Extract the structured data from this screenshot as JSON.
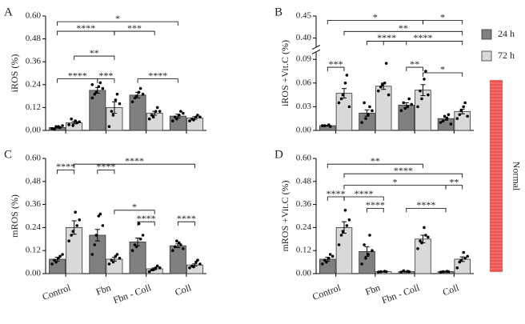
{
  "chart_data": [
    {
      "type": "bar",
      "panel_label": "A",
      "ylabel": "iROS (%)",
      "categories": [
        null,
        null,
        null,
        null
      ],
      "ylim": [
        0,
        0.6
      ],
      "yticks": [
        {
          "value": 0,
          "label": "0.00"
        },
        {
          "value": 0.12,
          "label": "0.12"
        },
        {
          "value": 0.24,
          "label": "0.24"
        },
        {
          "value": 0.36,
          "label": "0.36"
        },
        {
          "value": 0.48,
          "label": "0.48"
        },
        {
          "value": 0.6,
          "label": "0.60"
        }
      ],
      "series": [
        {
          "color": "#808080",
          "values": [
            0.015,
            0.21,
            0.185,
            0.075
          ],
          "errors": [
            0.003,
            0.015,
            0.015,
            0.01
          ],
          "points": [
            [
              0.01,
              0.02,
              0.015,
              0.005,
              0.02,
              0.025
            ],
            [
              0.17,
              0.23,
              0.25,
              0.19,
              0.2,
              0.22,
              0.24
            ],
            [
              0.15,
              0.2,
              0.22,
              0.17,
              0.18,
              0.19
            ],
            [
              0.05,
              0.08,
              0.1,
              0.07,
              0.06,
              0.09
            ]
          ]
        },
        {
          "color": "#d9d9d9",
          "values": [
            0.04,
            0.12,
            0.09,
            0.065
          ],
          "errors": [
            0.006,
            0.03,
            0.01,
            0.007
          ],
          "points": [
            [
              0.03,
              0.05,
              0.04,
              0.06,
              0.025,
              0.045
            ],
            [
              0.02,
              0.16,
              0.19,
              0.1,
              0.08,
              0.14
            ],
            [
              0.06,
              0.1,
              0.12,
              0.08,
              0.07,
              0.1
            ],
            [
              0.05,
              0.07,
              0.08,
              0.06,
              0.055,
              0.07
            ]
          ]
        }
      ],
      "brackets": [
        {
          "label": "*",
          "from": 0,
          "to": 6,
          "y": 0.57
        },
        {
          "label": "****",
          "from": 0,
          "to": 3,
          "y": 0.52
        },
        {
          "label": "***",
          "from": 3,
          "to": 5,
          "y": 0.52
        },
        {
          "label": "**",
          "from": 1,
          "to": 3,
          "y": 0.39
        },
        {
          "label": "****",
          "from": 0,
          "to": 2,
          "y": 0.27
        },
        {
          "label": "***",
          "from": 2,
          "to": 3,
          "y": 0.27
        },
        {
          "label": "****",
          "from": 4,
          "to": 6,
          "y": 0.27
        }
      ]
    },
    {
      "type": "bar",
      "panel_label": "B",
      "ylabel": "iROS +Vit.C (%)",
      "categories": [
        null,
        null,
        null,
        null
      ],
      "ylim": [
        0,
        0.1
      ],
      "yticks": [
        {
          "value": 0,
          "label": "0.00"
        },
        {
          "value": 0.03,
          "label": "0.03"
        },
        {
          "value": 0.06,
          "label": "0.06"
        },
        {
          "value": 0.09,
          "label": "0.09"
        }
      ],
      "upper_ylim": [
        0.38,
        0.45
      ],
      "upper_yticks": [
        {
          "value": 0.4,
          "label": "0.40"
        },
        {
          "value": 0.45,
          "label": "0.45"
        }
      ],
      "series": [
        {
          "name": "24 h",
          "color": "#808080",
          "values": [
            0.006,
            0.022,
            0.032,
            0.015
          ],
          "errors": [
            0.0005,
            0.004,
            0.003,
            0.002
          ],
          "points": [
            [
              0.006,
              0.007,
              0.005,
              0.006
            ],
            [
              0.01,
              0.02,
              0.03,
              0.035,
              0.015,
              0.025
            ],
            [
              0.025,
              0.03,
              0.04,
              0.035,
              0.028,
              0.033
            ],
            [
              0.01,
              0.015,
              0.02,
              0.012,
              0.018,
              0.008
            ]
          ]
        },
        {
          "name": "72 h",
          "color": "#d9d9d9",
          "values": [
            0.047,
            0.056,
            0.051,
            0.024
          ],
          "errors": [
            0.006,
            0.004,
            0.007,
            0.003
          ],
          "points": [
            [
              0.035,
              0.06,
              0.07,
              0.04,
              0.045,
              0.03
            ],
            [
              0.05,
              0.06,
              0.085,
              0.055,
              0.058,
              0.045
            ],
            [
              0.03,
              0.065,
              0.075,
              0.05,
              0.04,
              0.045
            ],
            [
              0.015,
              0.03,
              0.035,
              0.02,
              0.025,
              0.018
            ]
          ]
        }
      ],
      "brackets": [
        {
          "label": "***",
          "from": 0,
          "to": 1,
          "y": 0.08
        },
        {
          "label": "*",
          "from": 0,
          "to": 5,
          "y": 0.44
        },
        {
          "label": "*",
          "from": 5,
          "to": 7,
          "y": 0.44
        },
        {
          "label": "**",
          "from": 1,
          "to": 7,
          "y": 0.415
        },
        {
          "label": "****",
          "from": 2,
          "to": 4,
          "y": 0.393
        },
        {
          "label": "****",
          "from": 3,
          "to": 7,
          "y": 0.393
        },
        {
          "label": "**",
          "from": 4,
          "to": 5,
          "y": 0.08
        },
        {
          "label": "*",
          "from": 5,
          "to": 7,
          "y": 0.073
        }
      ]
    },
    {
      "type": "bar",
      "panel_label": "C",
      "ylabel": "mROS (%)",
      "categories": [
        "Control",
        "Fbn",
        "Fbn - Coll",
        "Coll"
      ],
      "ylim": [
        0,
        0.6
      ],
      "yticks": [
        {
          "value": 0,
          "label": "0.00"
        },
        {
          "value": 0.12,
          "label": "0.12"
        },
        {
          "value": 0.24,
          "label": "0.24"
        },
        {
          "value": 0.36,
          "label": "0.36"
        },
        {
          "value": 0.48,
          "label": "0.48"
        },
        {
          "value": 0.6,
          "label": "0.60"
        }
      ],
      "series": [
        {
          "color": "#808080",
          "values": [
            0.075,
            0.2,
            0.165,
            0.145
          ],
          "errors": [
            0.01,
            0.03,
            0.02,
            0.01
          ],
          "points": [
            [
              0.05,
              0.08,
              0.09,
              0.07,
              0.06,
              0.1
            ],
            [
              0.1,
              0.3,
              0.31,
              0.15,
              0.2,
              0.25
            ],
            [
              0.12,
              0.26,
              0.18,
              0.15,
              0.14,
              0.2
            ],
            [
              0.12,
              0.16,
              0.15,
              0.14,
              0.17,
              0.13
            ]
          ]
        },
        {
          "color": "#d9d9d9",
          "values": [
            0.24,
            0.075,
            0.025,
            0.045
          ],
          "errors": [
            0.035,
            0.01,
            0.005,
            0.006
          ],
          "points": [
            [
              0.17,
              0.32,
              0.25,
              0.2,
              0.22,
              0.28
            ],
            [
              0.05,
              0.09,
              0.1,
              0.07,
              0.06,
              0.08
            ],
            [
              0.01,
              0.03,
              0.04,
              0.02,
              0.02,
              0.03
            ],
            [
              0.03,
              0.06,
              0.07,
              0.04,
              0.035,
              0.05
            ]
          ]
        }
      ],
      "brackets": [
        {
          "label": "****",
          "from": 1,
          "to": 7,
          "y": 0.57
        },
        {
          "label": "****",
          "from": 0,
          "to": 1,
          "y": 0.54
        },
        {
          "label": "****",
          "from": 2,
          "to": 3,
          "y": 0.54
        },
        {
          "label": "*",
          "from": 3,
          "to": 5,
          "y": 0.33
        },
        {
          "label": "****",
          "from": 4,
          "to": 5,
          "y": 0.27
        },
        {
          "label": "****",
          "from": 6,
          "to": 7,
          "y": 0.27
        }
      ]
    },
    {
      "type": "bar",
      "panel_label": "D",
      "ylabel": "mROS +Vit.C (%)",
      "categories": [
        "Control",
        "Fbn",
        "Fbn - Coll",
        "Coll"
      ],
      "ylim": [
        0,
        0.6
      ],
      "yticks": [
        {
          "value": 0,
          "label": "0.00"
        },
        {
          "value": 0.12,
          "label": "0.12"
        },
        {
          "value": 0.24,
          "label": "0.24"
        },
        {
          "value": 0.36,
          "label": "0.36"
        },
        {
          "value": 0.48,
          "label": "0.48"
        },
        {
          "value": 0.6,
          "label": "0.60"
        }
      ],
      "series": [
        {
          "color": "#808080",
          "values": [
            0.075,
            0.115,
            0.01,
            0.01
          ],
          "errors": [
            0.01,
            0.025,
            0.002,
            0.002
          ],
          "points": [
            [
              0.05,
              0.08,
              0.1,
              0.07,
              0.06,
              0.09
            ],
            [
              0.05,
              0.1,
              0.2,
              0.15,
              0.08,
              0.12
            ],
            [
              0.008,
              0.012,
              0.01,
              0.015
            ],
            [
              0.008,
              0.012,
              0.01,
              0.01
            ]
          ]
        },
        {
          "color": "#d9d9d9",
          "values": [
            0.24,
            0.01,
            0.18,
            0.075
          ],
          "errors": [
            0.03,
            0.002,
            0.02,
            0.012
          ],
          "points": [
            [
              0.15,
              0.33,
              0.25,
              0.2,
              0.22,
              0.28
            ],
            [
              0.008,
              0.012,
              0.01,
              0.01
            ],
            [
              0.13,
              0.24,
              0.2,
              0.17,
              0.16,
              0.19
            ],
            [
              0.03,
              0.11,
              0.08,
              0.06,
              0.07,
              0.09
            ]
          ]
        }
      ],
      "brackets": [
        {
          "label": "**",
          "from": 0,
          "to": 5,
          "y": 0.57
        },
        {
          "label": "****",
          "from": 1,
          "to": 7,
          "y": 0.52
        },
        {
          "label": "*",
          "from": 1,
          "to": 6,
          "y": 0.46
        },
        {
          "label": "**",
          "from": 6,
          "to": 7,
          "y": 0.46
        },
        {
          "label": "****",
          "from": 0,
          "to": 1,
          "y": 0.4
        },
        {
          "label": "****",
          "from": 1,
          "to": 3,
          "y": 0.4
        },
        {
          "label": "****",
          "from": 2,
          "to": 3,
          "y": 0.34
        },
        {
          "label": "****",
          "from": 4,
          "to": 6,
          "y": 0.34
        }
      ]
    }
  ],
  "side_label": "Normal"
}
